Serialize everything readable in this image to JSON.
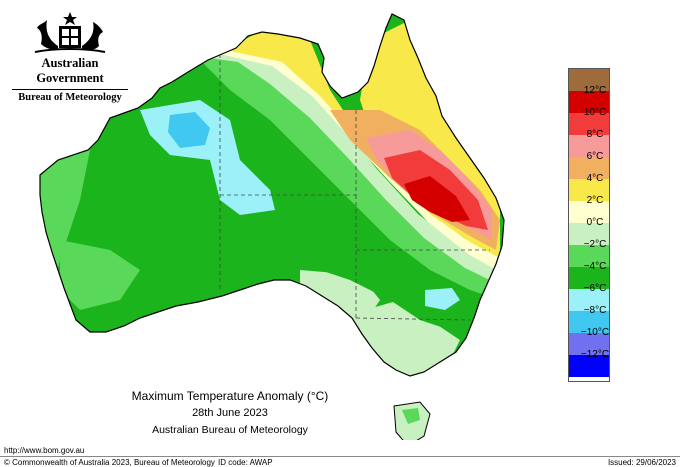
{
  "header": {
    "government": "Australian Government",
    "bureau": "Bureau of Meteorology"
  },
  "map": {
    "title": "Maximum Temperature Anomaly (°C)",
    "date": "28th June 2023",
    "source": "Australian Bureau of Meteorology"
  },
  "legend": {
    "labels": [
      "12°C",
      "10°C",
      "8°C",
      "6°C",
      "4°C",
      "2°C",
      "0°C",
      "−2°C",
      "−4°C",
      "−6°C",
      "−8°C",
      "−10°C",
      "−12°C"
    ],
    "colors": [
      "#9e6b3c",
      "#d40000",
      "#f23c3c",
      "#f79a9a",
      "#f0b060",
      "#f8e84a",
      "#ffffd0",
      "#c8f0c0",
      "#5ad85a",
      "#1cb41c",
      "#9cf0f8",
      "#40c8f0",
      "#7070f0",
      "#0000ff"
    ]
  },
  "footer": {
    "website": "http://www.bom.gov.au",
    "copyright": "© Commonwealth of Australia 2023, Bureau of Meteorology",
    "id_code": "ID code: AWAP",
    "issued": "Issued: 29/06/2023"
  }
}
